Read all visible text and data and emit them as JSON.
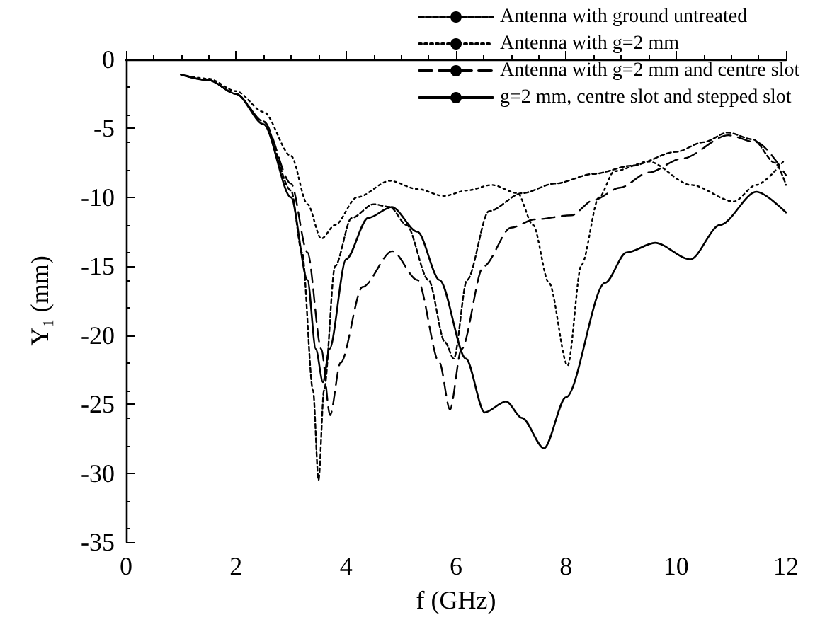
{
  "chart_data": {
    "type": "line",
    "xlabel": "f (GHz)",
    "ylabel": "Y₁ (mm)",
    "xlim": [
      0,
      12
    ],
    "xticks": [
      0,
      2,
      4,
      6,
      8,
      10,
      12
    ],
    "ylim": [
      -35,
      0
    ],
    "yticks": [
      -35,
      -30,
      -25,
      -20,
      -15,
      -10,
      -5,
      0
    ],
    "grid": false,
    "legend": "top right",
    "marker": "none",
    "series": [
      {
        "name": "Antenna with ground untreated",
        "color": "#000000",
        "line_style": "dashed",
        "x": [
          1,
          1.5,
          2,
          2.5,
          3,
          3.2,
          3.4,
          3.5,
          3.6,
          3.8,
          4.1,
          4.5,
          4.8,
          5.1,
          5.5,
          5.8,
          5.96,
          6.2,
          6.6,
          7.2,
          7.8,
          8.5,
          9.2,
          10,
          10.5,
          10.94,
          11.4,
          11.8,
          12
        ],
        "values": [
          -1.1,
          -1.5,
          -2.5,
          -4.5,
          -9.5,
          -14,
          -24,
          -30.5,
          -24,
          -15,
          -11.5,
          -10.5,
          -10.7,
          -12,
          -16,
          -20.5,
          -21.7,
          -16,
          -11,
          -9.7,
          -9,
          -8.3,
          -7.7,
          -6.7,
          -6,
          -5.3,
          -5.8,
          -7.5,
          -9.1
        ]
      },
      {
        "name": "Antenna with g=2 mm",
        "color": "#000000",
        "line_style": "dotted",
        "x": [
          1,
          1.5,
          2,
          2.5,
          3,
          3.3,
          3.55,
          3.8,
          4.2,
          4.8,
          5.3,
          5.78,
          6.2,
          6.65,
          7.12,
          7.4,
          7.69,
          8.03,
          8.28,
          8.6,
          8.88,
          9.5,
          10.27,
          11.05,
          11.46,
          11.97
        ],
        "values": [
          -1.1,
          -1.4,
          -2.3,
          -3.8,
          -7,
          -10.5,
          -13,
          -12,
          -10,
          -8.8,
          -9.4,
          -9.9,
          -9.5,
          -9.1,
          -9.7,
          -12,
          -16.2,
          -22.2,
          -14.9,
          -10,
          -8.1,
          -7.4,
          -9.1,
          -10.3,
          -9.1,
          -7.3
        ]
      },
      {
        "name": "Antenna with g=2 mm and centre slot",
        "color": "#000000",
        "line_style": "dashed",
        "x": [
          1,
          1.5,
          2,
          2.5,
          3,
          3.3,
          3.55,
          3.71,
          3.9,
          4.3,
          4.84,
          5.3,
          5.7,
          5.89,
          6.1,
          6.5,
          7,
          7.43,
          8.1,
          8.5,
          8.98,
          9.5,
          10.1,
          10.95,
          11.46,
          12
        ],
        "values": [
          -1.1,
          -1.5,
          -2.5,
          -4.5,
          -9,
          -14,
          -21,
          -25.8,
          -22,
          -16.5,
          -13.9,
          -16,
          -22,
          -25.4,
          -21,
          -15,
          -12.2,
          -11.6,
          -11.3,
          -10.2,
          -9.3,
          -8.2,
          -7.2,
          -5.5,
          -6,
          -8.4
        ]
      },
      {
        "name": "g=2 mm, centre slot and stepped slot",
        "color": "#000000",
        "line_style": "solid",
        "x": [
          1,
          1.5,
          2,
          2.5,
          3,
          3.3,
          3.45,
          3.58,
          3.7,
          4,
          4.4,
          4.83,
          5.3,
          5.7,
          6.18,
          6.52,
          6.91,
          7.2,
          7.6,
          8,
          8.71,
          9.1,
          9.62,
          10.26,
          10.8,
          11.46,
          12
        ],
        "values": [
          -1.1,
          -1.5,
          -2.5,
          -4.7,
          -10,
          -16,
          -21,
          -23.4,
          -21,
          -14.5,
          -11.5,
          -10.7,
          -12.5,
          -16,
          -21.7,
          -25.6,
          -24.8,
          -26,
          -28.2,
          -24.5,
          -16.2,
          -14,
          -13.3,
          -14.5,
          -12,
          -9.6,
          -11.1
        ]
      }
    ]
  }
}
